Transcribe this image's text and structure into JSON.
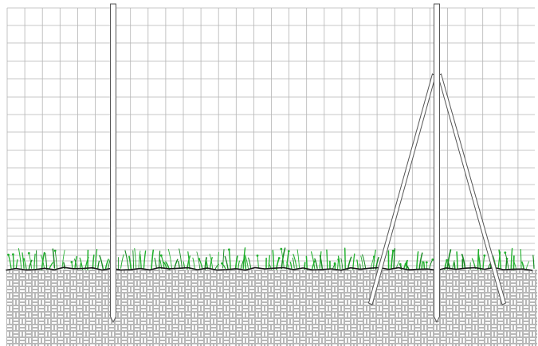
{
  "diagram": {
    "subject": "wire-mesh-fence-elevation",
    "colors": {
      "background": "#ffffff",
      "mesh_line": "#b4b4b4",
      "post_stroke": "#555555",
      "post_fill": "#ffffff",
      "grass": "#22b02e",
      "grass_dark": "#178a22",
      "ground_line": "#1a1a1a",
      "soil_pattern": "#9a9a9a"
    }
  }
}
